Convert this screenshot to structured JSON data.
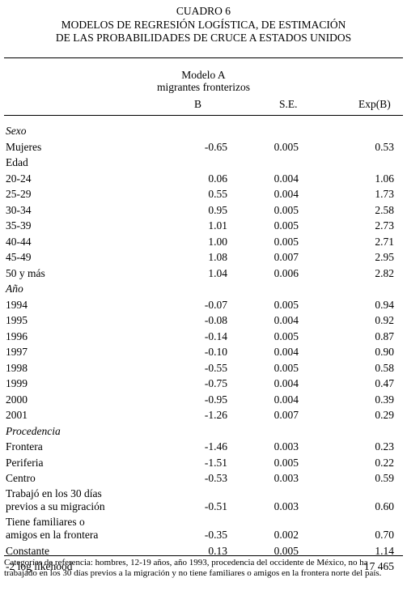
{
  "titles": {
    "line1": "CUADRO 6",
    "line2": "MODELOS DE REGRESIÓN LOGÍSTICA, DE ESTIMACIÓN",
    "line3": "DE LAS PROBABILIDADES DE CRUCE A ESTADOS UNIDOS"
  },
  "model": {
    "name": "Modelo A",
    "subtitle": "migrantes fronterizos"
  },
  "columns": {
    "b": "B",
    "se": "S.E.",
    "exp": "Exp(B)"
  },
  "rows": [
    {
      "label": "Sexo",
      "type": "section",
      "b": "",
      "se": "",
      "exp": ""
    },
    {
      "label": "Mujeres",
      "type": "data",
      "b": "-0.65",
      "se": "0.005",
      "exp": "0.53"
    },
    {
      "label": "Edad",
      "type": "plainsection",
      "b": "",
      "se": "",
      "exp": ""
    },
    {
      "label": "20-24",
      "type": "data",
      "b": "0.06",
      "se": "0.004",
      "exp": "1.06"
    },
    {
      "label": "25-29",
      "type": "data",
      "b": "0.55",
      "se": "0.004",
      "exp": "1.73"
    },
    {
      "label": "30-34",
      "type": "data",
      "b": "0.95",
      "se": "0.005",
      "exp": "2.58"
    },
    {
      "label": "35-39",
      "type": "data",
      "b": "1.01",
      "se": "0.005",
      "exp": "2.73"
    },
    {
      "label": "40-44",
      "type": "data",
      "b": "1.00",
      "se": "0.005",
      "exp": "2.71"
    },
    {
      "label": "45-49",
      "type": "data",
      "b": "1.08",
      "se": "0.007",
      "exp": "2.95"
    },
    {
      "label": "50 y más",
      "type": "data",
      "b": "1.04",
      "se": "0.006",
      "exp": "2.82"
    },
    {
      "label": "Año",
      "type": "section",
      "b": "",
      "se": "",
      "exp": ""
    },
    {
      "label": "1994",
      "type": "data",
      "b": "-0.07",
      "se": "0.005",
      "exp": "0.94"
    },
    {
      "label": "1995",
      "type": "data",
      "b": "-0.08",
      "se": "0.004",
      "exp": "0.92"
    },
    {
      "label": "1996",
      "type": "data",
      "b": "-0.14",
      "se": "0.005",
      "exp": "0.87"
    },
    {
      "label": "1997",
      "type": "data",
      "b": "-0.10",
      "se": "0.004",
      "exp": "0.90"
    },
    {
      "label": "1998",
      "type": "data",
      "b": "-0.55",
      "se": "0.005",
      "exp": "0.58"
    },
    {
      "label": "1999",
      "type": "data",
      "b": "-0.75",
      "se": "0.004",
      "exp": "0.47"
    },
    {
      "label": "2000",
      "type": "data",
      "b": "-0.95",
      "se": "0.004",
      "exp": "0.39"
    },
    {
      "label": "2001",
      "type": "data",
      "b": "-1.26",
      "se": "0.007",
      "exp": "0.29"
    },
    {
      "label": "Procedencia",
      "type": "section",
      "b": "",
      "se": "",
      "exp": ""
    },
    {
      "label": "Frontera",
      "type": "data",
      "b": "-1.46",
      "se": "0.003",
      "exp": "0.23"
    },
    {
      "label": "Periferia",
      "type": "data",
      "b": "-1.51",
      "se": "0.005",
      "exp": "0.22"
    },
    {
      "label": "Centro",
      "type": "data",
      "b": "-0.53",
      "se": "0.003",
      "exp": "0.59"
    },
    {
      "label": "Trabajó en los 30 días",
      "label2": "previos a su migración",
      "type": "tall",
      "b": "-0.51",
      "se": "0.003",
      "exp": "0.60"
    },
    {
      "label": "Tiene familiares o",
      "label2": "amigos en la frontera",
      "type": "tall",
      "b": "-0.35",
      "se": "0.002",
      "exp": "0.70"
    },
    {
      "label": "Constante",
      "type": "data",
      "b": "0.13",
      "se": "0.005",
      "exp": "1.14"
    },
    {
      "label": "-2 log likehood",
      "type": "data",
      "b": "",
      "se": "",
      "exp": "17 465"
    }
  ],
  "footnote": "Categorías de referencia: hombres, 12-19 años, año 1993, procedencia del occidente de México, no ha trabajado en los 30 días previos a la migración y no tiene familiares o amigos en la frontera norte del país."
}
